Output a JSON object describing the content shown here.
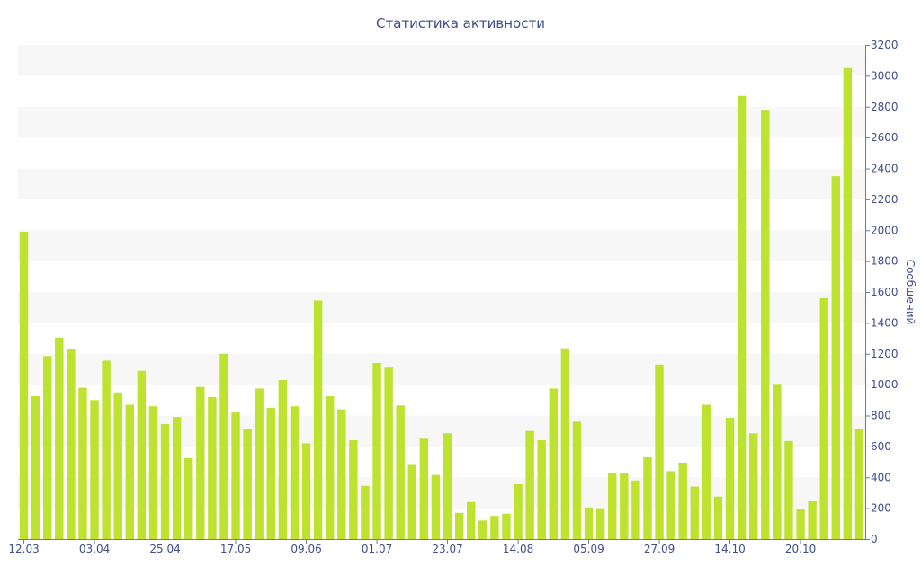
{
  "chart_data": {
    "type": "bar",
    "title": "Статистика активности",
    "xlabel": "",
    "ylabel": "Сообщений",
    "ylim": [
      0,
      3200
    ],
    "y_ticks": [
      0,
      200,
      400,
      600,
      800,
      1000,
      1200,
      1400,
      1600,
      1800,
      2000,
      2200,
      2400,
      2600,
      2800,
      3000,
      3200
    ],
    "y_axis_side": "right",
    "grid": "alternating horizontal bands",
    "x_tick_labels": [
      {
        "index": 0,
        "label": "12.03"
      },
      {
        "index": 6,
        "label": "03.04"
      },
      {
        "index": 12,
        "label": "25.04"
      },
      {
        "index": 18,
        "label": "17.05"
      },
      {
        "index": 24,
        "label": "09.06"
      },
      {
        "index": 30,
        "label": "01.07"
      },
      {
        "index": 36,
        "label": "23.07"
      },
      {
        "index": 42,
        "label": "14.08"
      },
      {
        "index": 48,
        "label": "05.09"
      },
      {
        "index": 54,
        "label": "27.09"
      },
      {
        "index": 60,
        "label": "14.10"
      },
      {
        "index": 66,
        "label": "20.10"
      }
    ],
    "bar_color": "#bde22f",
    "band_color": "#f7f7f7",
    "text_color": "#3e4e8c",
    "axis_color": "#6b78a8",
    "values": [
      1990,
      925,
      1185,
      1305,
      1230,
      980,
      900,
      1155,
      950,
      870,
      1090,
      860,
      745,
      790,
      525,
      985,
      920,
      1200,
      820,
      715,
      975,
      850,
      1030,
      860,
      620,
      1545,
      925,
      840,
      640,
      345,
      1140,
      1110,
      865,
      480,
      650,
      415,
      685,
      170,
      240,
      120,
      150,
      165,
      355,
      700,
      640,
      975,
      1235,
      760,
      205,
      200,
      430,
      425,
      380,
      530,
      1130,
      440,
      495,
      340,
      870,
      275,
      785,
      2870,
      685,
      2780,
      1005,
      635,
      195,
      245,
      1560,
      2350,
      3050,
      710
    ]
  }
}
